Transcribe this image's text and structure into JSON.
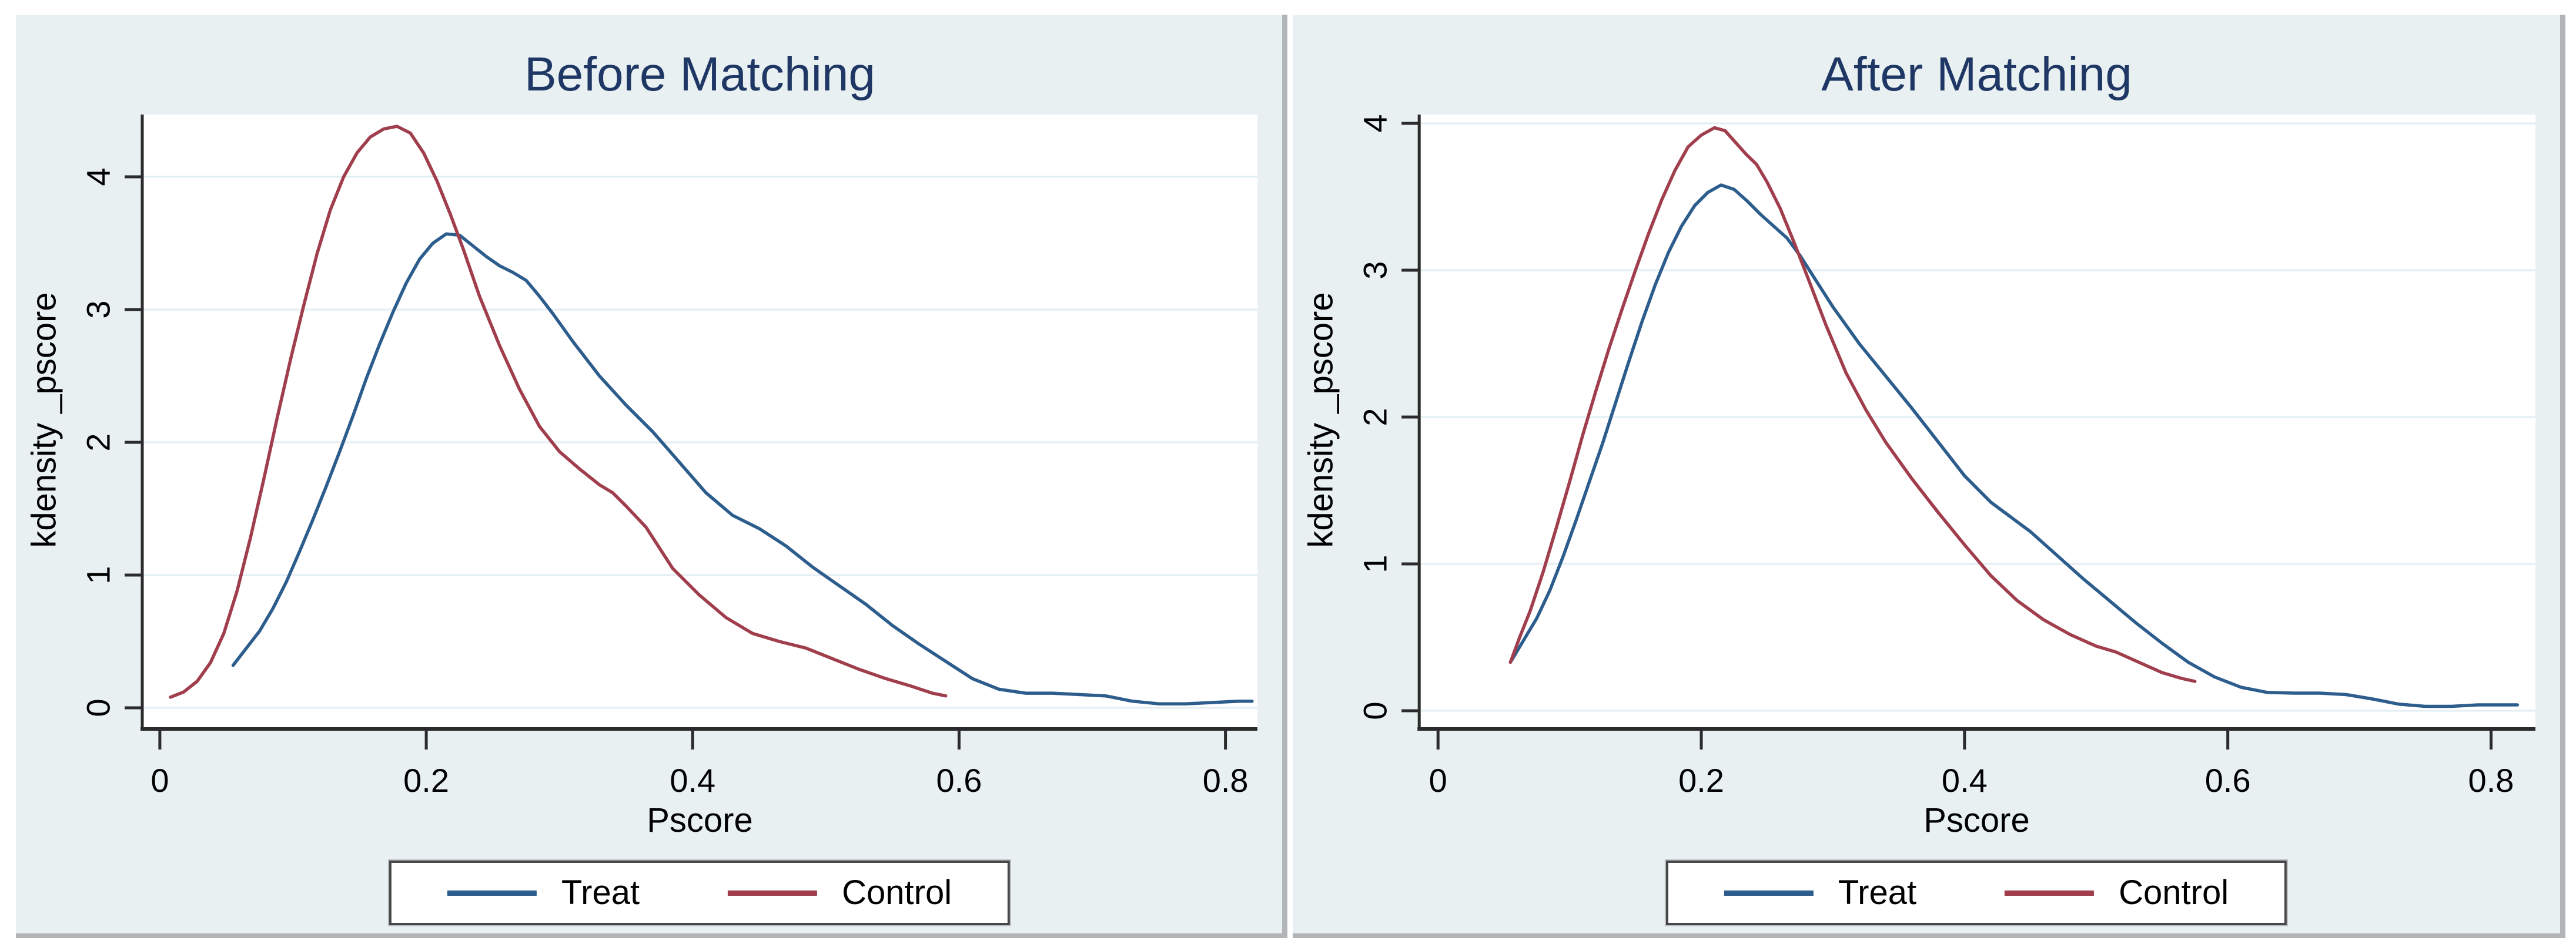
{
  "styles": {
    "page_bg": "#ffffff",
    "panel_bg": "#e9f0f2",
    "panel_border": "#b2b5b7",
    "plot_bg": "#ffffff",
    "grid_color": "#e3eef3",
    "axis_color": "#2b2b2b",
    "title_color": "#1e3764",
    "text_color": "#000000",
    "legend_bg": "#ffffff",
    "legend_border": "#474747"
  },
  "chart_data": [
    {
      "type": "line",
      "title": "Before Matching",
      "xlabel": "Pscore",
      "ylabel": "kdensity _pscore",
      "xlim": [
        -0.0132,
        0.824
      ],
      "ylim": [
        -0.146,
        4.469
      ],
      "xticks": {
        "values": [
          0,
          0.2,
          0.4,
          0.6,
          0.8
        ],
        "labels": [
          "0",
          "0.2",
          "0.4",
          "0.6",
          "0.8"
        ]
      },
      "yticks": {
        "values": [
          0,
          1,
          2,
          3,
          4
        ],
        "labels": [
          "0",
          "1",
          "2",
          "3",
          "4"
        ]
      },
      "grid": "horizontal",
      "legend_position": "bottom",
      "series": [
        {
          "name": "Treat",
          "color": "#2d5d8c",
          "points": [
            [
              0.055,
              0.32
            ],
            [
              0.065,
              0.45
            ],
            [
              0.075,
              0.58
            ],
            [
              0.085,
              0.75
            ],
            [
              0.095,
              0.95
            ],
            [
              0.105,
              1.18
            ],
            [
              0.115,
              1.42
            ],
            [
              0.125,
              1.67
            ],
            [
              0.135,
              1.93
            ],
            [
              0.145,
              2.2
            ],
            [
              0.155,
              2.48
            ],
            [
              0.165,
              2.74
            ],
            [
              0.175,
              2.98
            ],
            [
              0.185,
              3.2
            ],
            [
              0.195,
              3.38
            ],
            [
              0.205,
              3.5
            ],
            [
              0.215,
              3.57
            ],
            [
              0.225,
              3.56
            ],
            [
              0.235,
              3.48
            ],
            [
              0.245,
              3.4
            ],
            [
              0.255,
              3.33
            ],
            [
              0.265,
              3.28
            ],
            [
              0.275,
              3.22
            ],
            [
              0.285,
              3.1
            ],
            [
              0.295,
              2.97
            ],
            [
              0.31,
              2.76
            ],
            [
              0.33,
              2.5
            ],
            [
              0.35,
              2.28
            ],
            [
              0.37,
              2.08
            ],
            [
              0.39,
              1.85
            ],
            [
              0.41,
              1.62
            ],
            [
              0.43,
              1.45
            ],
            [
              0.45,
              1.35
            ],
            [
              0.47,
              1.22
            ],
            [
              0.49,
              1.06
            ],
            [
              0.51,
              0.92
            ],
            [
              0.53,
              0.78
            ],
            [
              0.55,
              0.62
            ],
            [
              0.57,
              0.48
            ],
            [
              0.59,
              0.35
            ],
            [
              0.61,
              0.22
            ],
            [
              0.63,
              0.14
            ],
            [
              0.65,
              0.11
            ],
            [
              0.67,
              0.11
            ],
            [
              0.69,
              0.1
            ],
            [
              0.71,
              0.09
            ],
            [
              0.73,
              0.05
            ],
            [
              0.75,
              0.03
            ],
            [
              0.77,
              0.03
            ],
            [
              0.79,
              0.04
            ],
            [
              0.81,
              0.05
            ],
            [
              0.82,
              0.05
            ]
          ]
        },
        {
          "name": "Control",
          "color": "#a03e4d",
          "points": [
            [
              0.008,
              0.08
            ],
            [
              0.018,
              0.12
            ],
            [
              0.028,
              0.2
            ],
            [
              0.038,
              0.34
            ],
            [
              0.048,
              0.56
            ],
            [
              0.058,
              0.88
            ],
            [
              0.068,
              1.28
            ],
            [
              0.078,
              1.72
            ],
            [
              0.088,
              2.18
            ],
            [
              0.098,
              2.62
            ],
            [
              0.108,
              3.03
            ],
            [
              0.118,
              3.42
            ],
            [
              0.128,
              3.75
            ],
            [
              0.138,
              4.0
            ],
            [
              0.148,
              4.18
            ],
            [
              0.158,
              4.3
            ],
            [
              0.168,
              4.36
            ],
            [
              0.178,
              4.38
            ],
            [
              0.188,
              4.33
            ],
            [
              0.198,
              4.18
            ],
            [
              0.208,
              3.97
            ],
            [
              0.218,
              3.72
            ],
            [
              0.228,
              3.45
            ],
            [
              0.24,
              3.1
            ],
            [
              0.255,
              2.73
            ],
            [
              0.27,
              2.4
            ],
            [
              0.285,
              2.12
            ],
            [
              0.3,
              1.93
            ],
            [
              0.315,
              1.8
            ],
            [
              0.33,
              1.68
            ],
            [
              0.34,
              1.62
            ],
            [
              0.35,
              1.52
            ],
            [
              0.365,
              1.36
            ],
            [
              0.385,
              1.05
            ],
            [
              0.405,
              0.85
            ],
            [
              0.425,
              0.68
            ],
            [
              0.445,
              0.56
            ],
            [
              0.465,
              0.5
            ],
            [
              0.485,
              0.45
            ],
            [
              0.505,
              0.37
            ],
            [
              0.525,
              0.29
            ],
            [
              0.545,
              0.22
            ],
            [
              0.565,
              0.16
            ],
            [
              0.58,
              0.11
            ],
            [
              0.59,
              0.09
            ]
          ]
        }
      ]
    },
    {
      "type": "line",
      "title": "After Matching",
      "xlabel": "Pscore",
      "ylabel": "kdensity _pscore",
      "xlim": [
        -0.0143,
        0.8337
      ],
      "ylim": [
        -0.112,
        4.06
      ],
      "xticks": {
        "values": [
          0,
          0.2,
          0.4,
          0.6,
          0.8
        ],
        "labels": [
          "0",
          "0.2",
          "0.4",
          "0.6",
          "0.8"
        ]
      },
      "yticks": {
        "values": [
          0,
          1,
          2,
          3,
          4
        ],
        "labels": [
          "0",
          "1",
          "2",
          "3",
          "4"
        ]
      },
      "grid": "horizontal",
      "legend_position": "bottom",
      "series": [
        {
          "name": "Treat",
          "color": "#2d5d8c",
          "points": [
            [
              0.055,
              0.33
            ],
            [
              0.065,
              0.48
            ],
            [
              0.075,
              0.63
            ],
            [
              0.085,
              0.82
            ],
            [
              0.095,
              1.05
            ],
            [
              0.105,
              1.3
            ],
            [
              0.115,
              1.56
            ],
            [
              0.125,
              1.82
            ],
            [
              0.135,
              2.1
            ],
            [
              0.145,
              2.38
            ],
            [
              0.155,
              2.65
            ],
            [
              0.165,
              2.9
            ],
            [
              0.175,
              3.12
            ],
            [
              0.185,
              3.3
            ],
            [
              0.195,
              3.44
            ],
            [
              0.205,
              3.53
            ],
            [
              0.215,
              3.58
            ],
            [
              0.225,
              3.55
            ],
            [
              0.235,
              3.47
            ],
            [
              0.245,
              3.38
            ],
            [
              0.255,
              3.3
            ],
            [
              0.265,
              3.22
            ],
            [
              0.275,
              3.1
            ],
            [
              0.285,
              2.96
            ],
            [
              0.3,
              2.75
            ],
            [
              0.32,
              2.5
            ],
            [
              0.34,
              2.28
            ],
            [
              0.36,
              2.06
            ],
            [
              0.38,
              1.83
            ],
            [
              0.4,
              1.6
            ],
            [
              0.42,
              1.42
            ],
            [
              0.435,
              1.32
            ],
            [
              0.45,
              1.22
            ],
            [
              0.47,
              1.06
            ],
            [
              0.49,
              0.9
            ],
            [
              0.51,
              0.75
            ],
            [
              0.53,
              0.6
            ],
            [
              0.55,
              0.46
            ],
            [
              0.57,
              0.33
            ],
            [
              0.59,
              0.23
            ],
            [
              0.61,
              0.16
            ],
            [
              0.63,
              0.125
            ],
            [
              0.65,
              0.12
            ],
            [
              0.67,
              0.12
            ],
            [
              0.69,
              0.11
            ],
            [
              0.71,
              0.08
            ],
            [
              0.73,
              0.045
            ],
            [
              0.75,
              0.03
            ],
            [
              0.77,
              0.03
            ],
            [
              0.79,
              0.04
            ],
            [
              0.81,
              0.04
            ],
            [
              0.82,
              0.04
            ]
          ]
        },
        {
          "name": "Control",
          "color": "#a03e4d",
          "points": [
            [
              0.055,
              0.33
            ],
            [
              0.062,
              0.5
            ],
            [
              0.07,
              0.68
            ],
            [
              0.08,
              0.95
            ],
            [
              0.09,
              1.25
            ],
            [
              0.1,
              1.56
            ],
            [
              0.11,
              1.88
            ],
            [
              0.12,
              2.18
            ],
            [
              0.13,
              2.47
            ],
            [
              0.14,
              2.74
            ],
            [
              0.15,
              3.0
            ],
            [
              0.16,
              3.25
            ],
            [
              0.17,
              3.48
            ],
            [
              0.18,
              3.68
            ],
            [
              0.19,
              3.84
            ],
            [
              0.2,
              3.92
            ],
            [
              0.21,
              3.97
            ],
            [
              0.218,
              3.95
            ],
            [
              0.226,
              3.87
            ],
            [
              0.234,
              3.79
            ],
            [
              0.242,
              3.72
            ],
            [
              0.25,
              3.6
            ],
            [
              0.26,
              3.42
            ],
            [
              0.27,
              3.2
            ],
            [
              0.28,
              2.97
            ],
            [
              0.295,
              2.62
            ],
            [
              0.31,
              2.3
            ],
            [
              0.325,
              2.05
            ],
            [
              0.34,
              1.83
            ],
            [
              0.36,
              1.58
            ],
            [
              0.38,
              1.35
            ],
            [
              0.4,
              1.13
            ],
            [
              0.42,
              0.92
            ],
            [
              0.44,
              0.75
            ],
            [
              0.46,
              0.62
            ],
            [
              0.48,
              0.52
            ],
            [
              0.5,
              0.44
            ],
            [
              0.515,
              0.4
            ],
            [
              0.53,
              0.34
            ],
            [
              0.55,
              0.26
            ],
            [
              0.565,
              0.22
            ],
            [
              0.575,
              0.2
            ]
          ]
        }
      ]
    }
  ]
}
